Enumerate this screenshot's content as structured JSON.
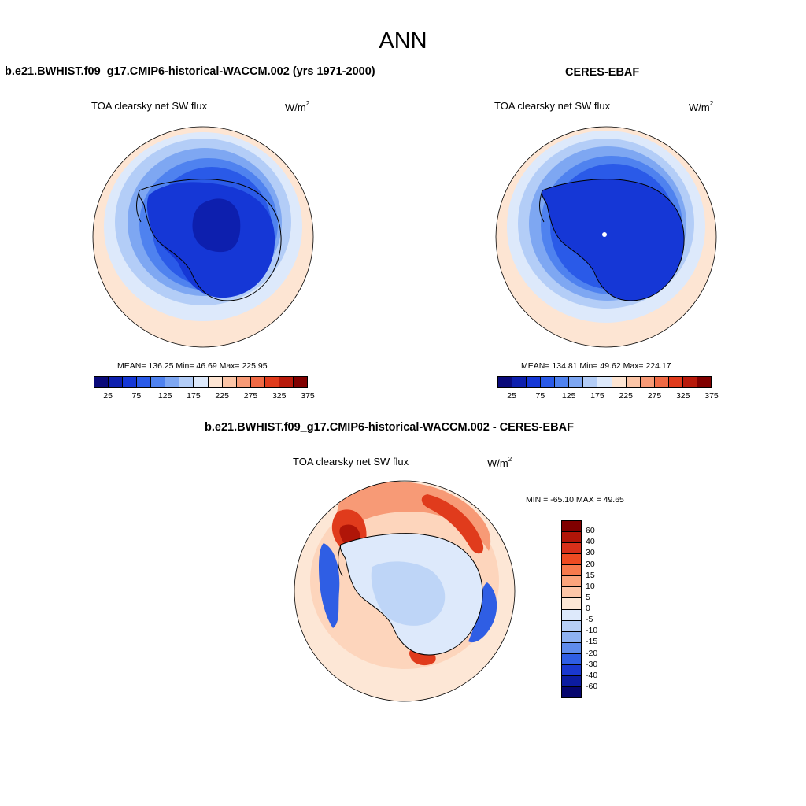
{
  "season": "ANN",
  "panels": {
    "model": {
      "title": "b.e21.BWHIST.f09_g17.CMIP6-historical-WACCM.002 (yrs 1971-2000)",
      "variable": "TOA clearsky net SW flux",
      "units_base": "W/m",
      "units_exp": "2",
      "stats": "MEAN= 136.25  Min=  46.69  Max= 225.95",
      "mean": 136.25,
      "min": 46.69,
      "max": 225.95
    },
    "obs": {
      "title": "CERES-EBAF",
      "variable": "TOA clearsky net SW flux",
      "units_base": "W/m",
      "units_exp": "2",
      "stats": "MEAN= 134.81  Min=  49.62  Max= 224.17",
      "mean": 134.81,
      "min": 49.62,
      "max": 224.17
    },
    "diff": {
      "title": "b.e21.BWHIST.f09_g17.CMIP6-historical-WACCM.002 - CERES-EBAF",
      "variable": "TOA clearsky net SW flux",
      "units_base": "W/m",
      "units_exp": "2",
      "stats": "MIN = -65.10 MAX =  49.65",
      "min": -65.1,
      "max": 49.65
    }
  },
  "abs_colorbar": {
    "tick_labels": [
      "25",
      "75",
      "125",
      "175",
      "225",
      "275",
      "325",
      "375"
    ],
    "colors": [
      "#0a0a7a",
      "#0d1fae",
      "#1537d6",
      "#2a5ae8",
      "#4f82ef",
      "#7ea7f2",
      "#b3cdf7",
      "#dde9fb",
      "#fde5d3",
      "#fbc5a7",
      "#f79a76",
      "#f06a45",
      "#e03b1c",
      "#b81a0b",
      "#800000"
    ]
  },
  "diff_colorbar": {
    "tick_labels": [
      "60",
      "40",
      "30",
      "20",
      "15",
      "10",
      "5",
      "0",
      "-5",
      "-10",
      "-15",
      "-20",
      "-30",
      "-40",
      "-60"
    ],
    "colors": [
      "#800000",
      "#b01508",
      "#d8301a",
      "#ee4b22",
      "#f77a4d",
      "#fba47c",
      "#fdc6a8",
      "#fde7d6",
      "#dde9fb",
      "#b7cff6",
      "#8eb2f2",
      "#5f8cec",
      "#2f5ee4",
      "#1a38cf",
      "#0c1ca0",
      "#06066e"
    ]
  }
}
